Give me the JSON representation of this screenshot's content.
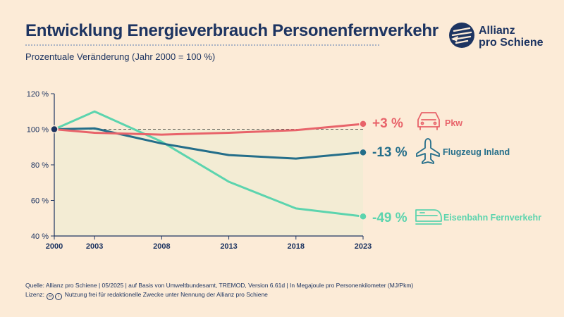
{
  "header": {
    "title": "Entwicklung Energieverbrauch Personenfernverkehr",
    "subtitle": "Prozentuale Veränderung (Jahr 2000 = 100 %)"
  },
  "logo": {
    "line1": "Allianz",
    "line2": "pro Schiene",
    "icon": "allianz-pro-schiene-logo-icon"
  },
  "footer": {
    "source": "Quelle: Allianz pro Schiene | 05/2025 | auf Basis von Umweltbundesamt, TREMOD, Version 6.61d | In Megajoule pro Personenkilometer (MJ/Pkm)",
    "license_label": "Lizenz:",
    "license_text": "Nutzung frei für redaktionelle Zwecke unter Nennung der Allianz pro Schiene",
    "license_icon": "creative-commons-icon"
  },
  "colors": {
    "background": "#fcebd7",
    "plot_area": "#f3ecd4",
    "navy": "#1d3461",
    "pkw": "#e8636a",
    "flugzeug": "#246e8a",
    "eisenbahn": "#5cd4ae"
  },
  "chart_data": {
    "type": "line",
    "title": "Entwicklung Energieverbrauch Personenfernverkehr",
    "subtitle": "Prozentuale Veränderung (Jahr 2000 = 100 %)",
    "x": [
      2000,
      2003,
      2008,
      2013,
      2018,
      2023
    ],
    "x_ticks": [
      "2000",
      "2003",
      "2008",
      "2013",
      "2018",
      "2023"
    ],
    "y_ticks": [
      40,
      60,
      80,
      100,
      120
    ],
    "y_tick_labels": [
      "40 %",
      "60 %",
      "80 %",
      "100 %",
      "120 %"
    ],
    "ylim": [
      40,
      120
    ],
    "baseline": 100,
    "series": [
      {
        "key": "pkw",
        "name": "Pkw",
        "change_label": "+3 %",
        "icon": "car-icon",
        "values": [
          100,
          98,
          97,
          98,
          99.5,
          103
        ]
      },
      {
        "key": "flugzeug",
        "name": "Flugzeug Inland",
        "change_label": "-13 %",
        "icon": "airplane-icon",
        "values": [
          100,
          100.5,
          92,
          85.5,
          83.5,
          87
        ]
      },
      {
        "key": "eisenbahn",
        "name": "Eisenbahn Fernverkehr",
        "change_label": "-49 %",
        "icon": "train-icon",
        "values": [
          100,
          110,
          93,
          70.5,
          55.5,
          51
        ]
      }
    ]
  }
}
